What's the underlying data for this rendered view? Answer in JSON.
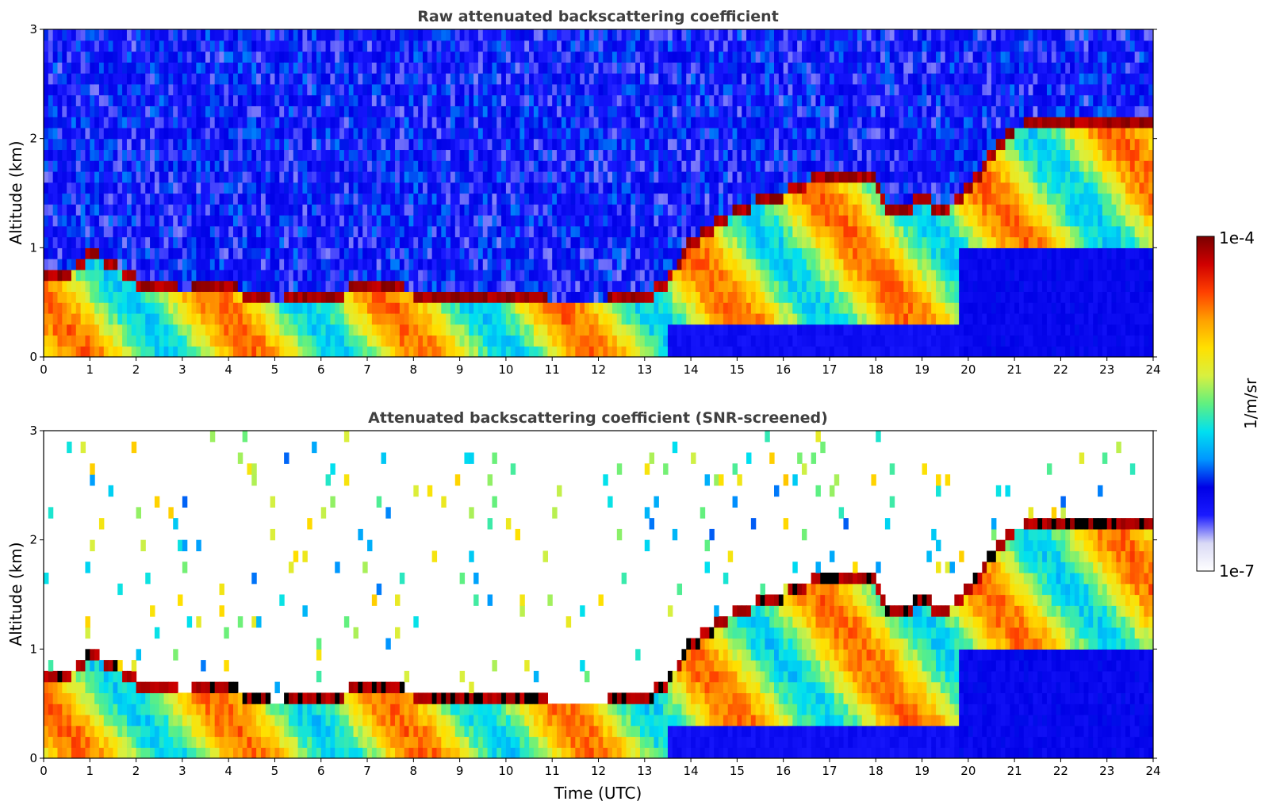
{
  "figure": {
    "colormap": [
      "#ffffff",
      "#d9d9f5",
      "#1a1aff",
      "#0000e6",
      "#0096ff",
      "#00e0f0",
      "#60f080",
      "#d8f040",
      "#ffe000",
      "#ffa000",
      "#ff4000",
      "#d00000",
      "#7a0000"
    ],
    "saturation_color": "#000000"
  },
  "chart_data": [
    {
      "type": "heatmap",
      "panel": "top",
      "title": "Raw attenuated backscattering coefficient",
      "xlabel": "",
      "ylabel": "Altitude (km)",
      "x_ticks": [
        "0",
        "1",
        "2",
        "3",
        "4",
        "5",
        "6",
        "7",
        "8",
        "9",
        "10",
        "11",
        "12",
        "13",
        "14",
        "15",
        "16",
        "17",
        "18",
        "19",
        "20",
        "21",
        "22",
        "23",
        "24"
      ],
      "y_ticks": [
        "0",
        "1",
        "2",
        "3"
      ],
      "xlim": [
        0,
        24
      ],
      "ylim": [
        0,
        3
      ],
      "layer_altitude_km": {
        "x": [
          0,
          0.5,
          1,
          1.5,
          2,
          3,
          4,
          4.5,
          5,
          6,
          7,
          8,
          9,
          10,
          11,
          12,
          13,
          13.5,
          14,
          15,
          16,
          17,
          18,
          18.3,
          19,
          19.5,
          20,
          20.5,
          21,
          22,
          23,
          23.9
        ],
        "y": [
          0.75,
          0.7,
          0.9,
          0.8,
          0.65,
          0.55,
          0.6,
          0.5,
          0.45,
          0.5,
          0.6,
          0.55,
          0.5,
          0.55,
          0.45,
          0.45,
          0.5,
          0.65,
          1.0,
          1.3,
          1.45,
          1.65,
          1.6,
          1.25,
          1.4,
          1.3,
          1.5,
          1.8,
          2.05,
          2.1,
          2.12,
          2.1
        ]
      },
      "clear_sky_noise": true
    },
    {
      "type": "heatmap",
      "panel": "bottom",
      "title": "Attenuated backscattering coefficient (SNR-screened)",
      "xlabel": "Time (UTC)",
      "ylabel": "Altitude (km)",
      "x_ticks": [
        "0",
        "1",
        "2",
        "3",
        "4",
        "5",
        "6",
        "7",
        "8",
        "9",
        "10",
        "11",
        "12",
        "13",
        "14",
        "15",
        "16",
        "17",
        "18",
        "19",
        "20",
        "21",
        "22",
        "23",
        "24"
      ],
      "y_ticks": [
        "0",
        "1",
        "2",
        "3"
      ],
      "xlim": [
        0,
        24
      ],
      "ylim": [
        0,
        3
      ],
      "layer_altitude_km": {
        "x": [
          0,
          0.5,
          1,
          1.5,
          2,
          3,
          4,
          4.5,
          5,
          6,
          7,
          8,
          9,
          10,
          11,
          12,
          13,
          13.5,
          14,
          15,
          16,
          17,
          18,
          18.3,
          19,
          19.5,
          20,
          20.5,
          21,
          22,
          23,
          23.9
        ],
        "y": [
          0.75,
          0.7,
          0.9,
          0.8,
          0.65,
          0.55,
          0.6,
          0.5,
          0.45,
          0.5,
          0.6,
          0.55,
          0.5,
          0.55,
          0.45,
          0.45,
          0.5,
          0.65,
          1.0,
          1.3,
          1.45,
          1.65,
          1.6,
          1.25,
          1.4,
          1.3,
          1.5,
          1.8,
          2.05,
          2.1,
          2.12,
          2.1
        ]
      },
      "clear_sky_noise": false
    }
  ],
  "colorbar": {
    "label": "1/m/sr",
    "max_label": "1e-4",
    "min_label": "1e-7",
    "scale": "log"
  }
}
